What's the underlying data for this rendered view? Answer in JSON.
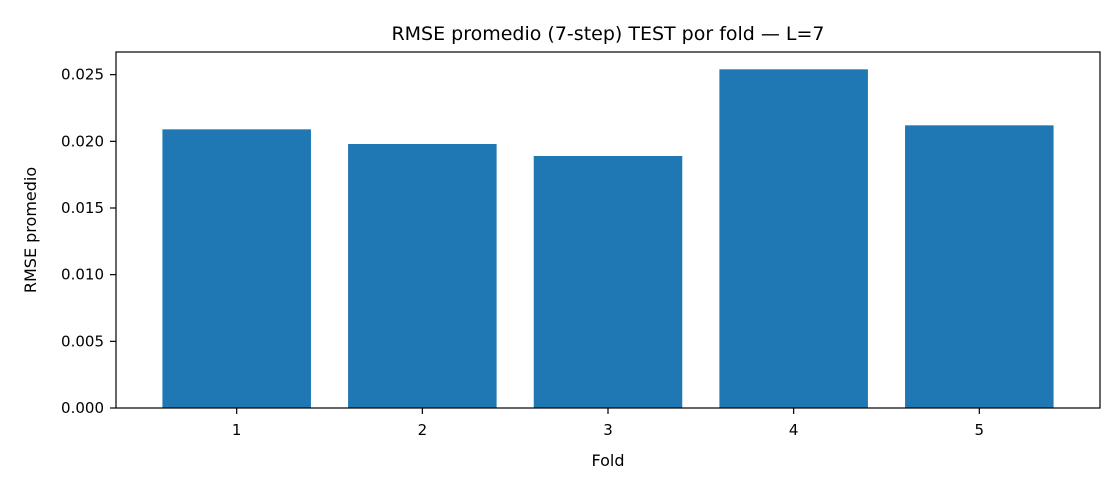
{
  "chart_data": {
    "type": "bar",
    "title": "RMSE promedio (7-step) TEST por fold — L=7",
    "xlabel": "Fold",
    "ylabel": "RMSE promedio",
    "categories": [
      "1",
      "2",
      "3",
      "4",
      "5"
    ],
    "values": [
      0.0209,
      0.0198,
      0.0189,
      0.0254,
      0.0212
    ],
    "ylim": [
      0,
      0.0267
    ],
    "yticks": [
      0.0,
      0.005,
      0.01,
      0.015,
      0.02,
      0.025
    ],
    "ytick_labels": [
      "0.000",
      "0.005",
      "0.010",
      "0.015",
      "0.020",
      "0.025"
    ],
    "bar_color": "#1f77b4",
    "grid": false,
    "legend": "none"
  }
}
